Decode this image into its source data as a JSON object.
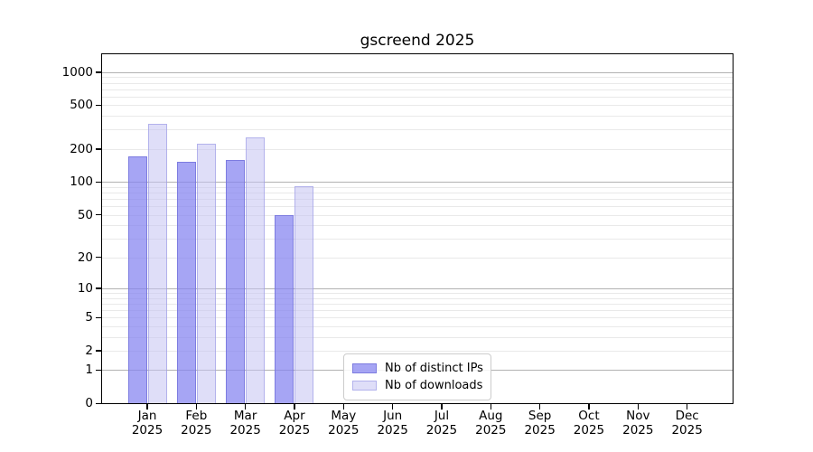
{
  "chart_data": {
    "type": "bar",
    "title": "gscreend 2025",
    "categories": [
      "Jan",
      "Feb",
      "Mar",
      "Apr",
      "May",
      "Jun",
      "Jul",
      "Aug",
      "Sep",
      "Oct",
      "Nov",
      "Dec"
    ],
    "year_label": "2025",
    "series": [
      {
        "name": "Nb of distinct IPs",
        "fill": "rgba(132,130,240,0.72)",
        "edge": "rgba(118,116,220,0.85)",
        "values": [
          172,
          152,
          160,
          50,
          0,
          0,
          0,
          0,
          0,
          0,
          0,
          0
        ]
      },
      {
        "name": "Nb of downloads",
        "fill": "rgba(197,194,243,0.55)",
        "edge": "rgba(150,148,228,0.6)",
        "values": [
          339,
          224,
          253,
          91,
          0,
          0,
          0,
          0,
          0,
          0,
          0,
          0
        ]
      }
    ],
    "yscale": "log1p",
    "yticks": [
      0,
      1,
      2,
      5,
      10,
      20,
      50,
      100,
      200,
      500,
      1000
    ],
    "ylim": [
      0,
      1480
    ],
    "xlabel": "",
    "ylabel": "",
    "grid": true,
    "legend_position": "lower center",
    "colors": {
      "background": "#ffffff",
      "decade_gridline": "#b2b2b2",
      "minor_gridline": "#e9e9e9",
      "spine": "#000000",
      "legend_border": "#cccccc",
      "text": "#000000"
    }
  }
}
